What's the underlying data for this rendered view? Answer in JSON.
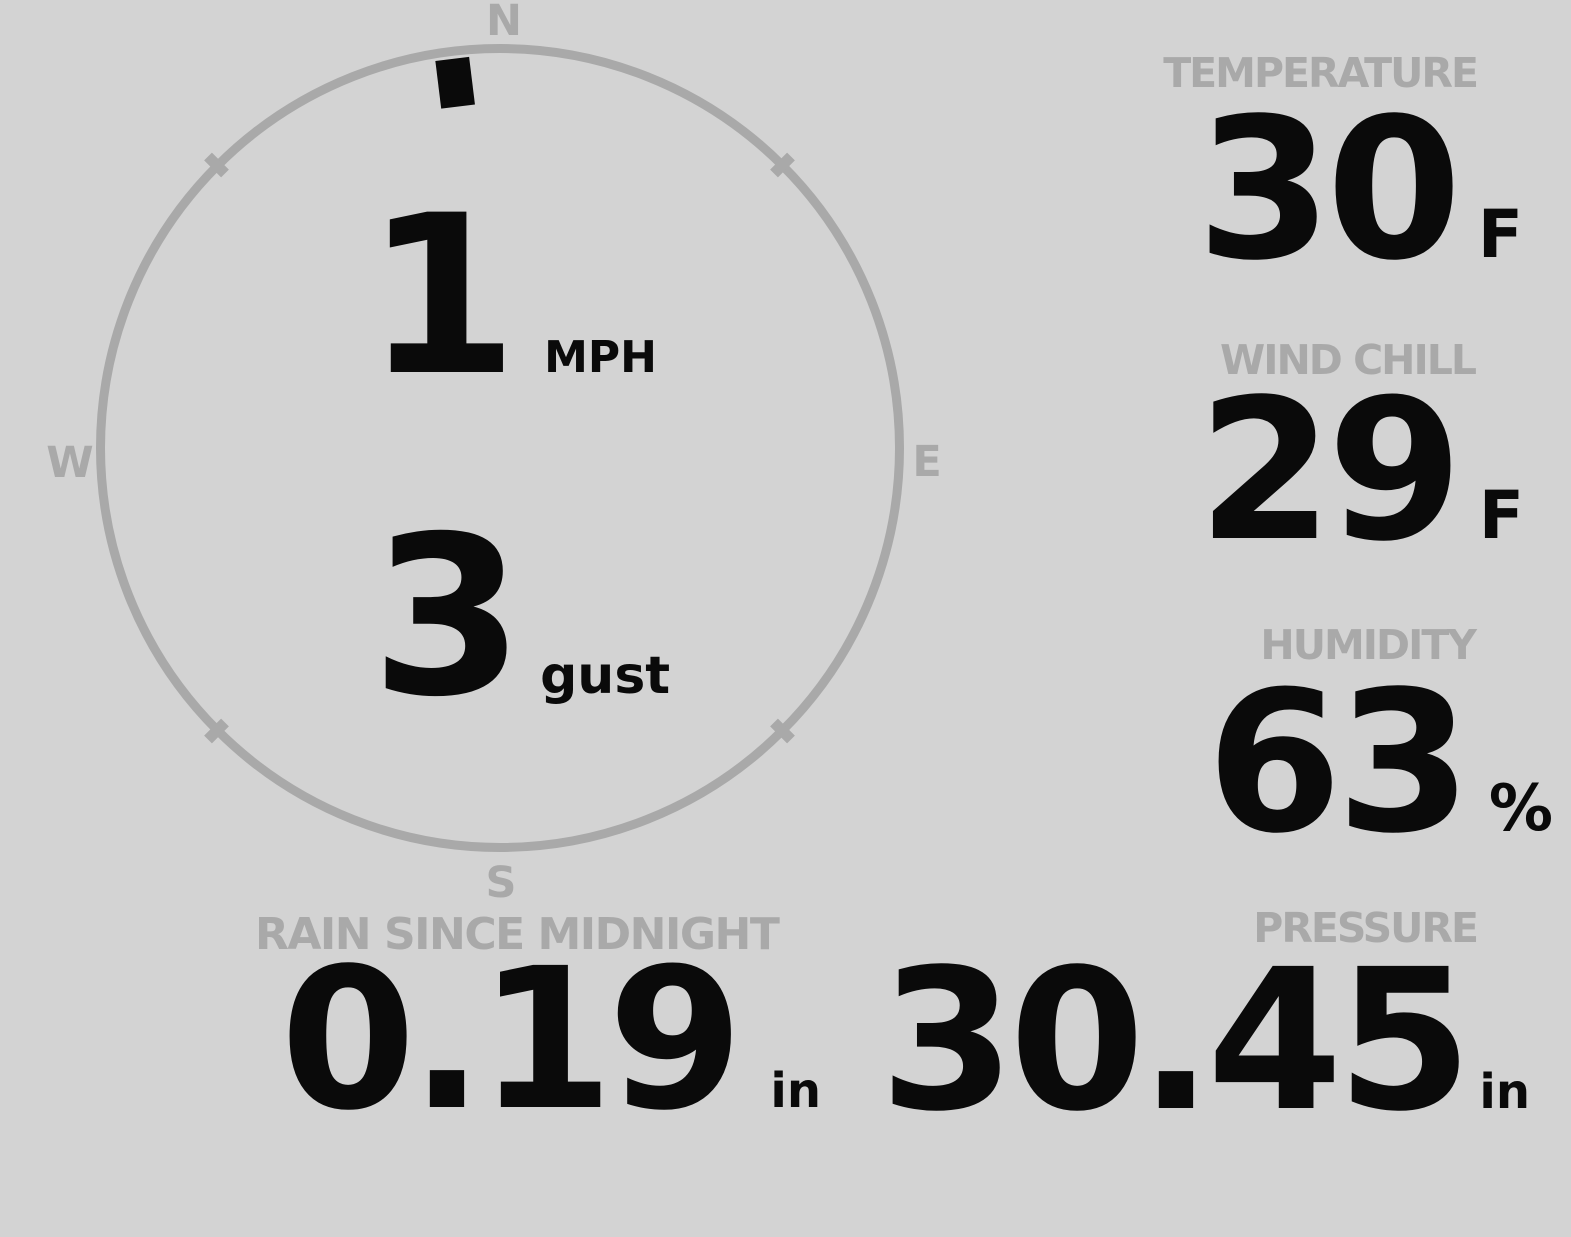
{
  "colors": {
    "background": "#d3d3d3",
    "muted": "#a9a9a9",
    "ink": "#0a0a0a"
  },
  "compass": {
    "cardinals": {
      "north": "N",
      "east": "E",
      "south": "S",
      "west": "W"
    },
    "wind_speed": {
      "value": "1",
      "unit": "MPH"
    },
    "wind_gust": {
      "value": "3",
      "unit": "gust"
    },
    "wind_direction_deg": 353
  },
  "metrics": {
    "temperature": {
      "label": "TEMPERATURE",
      "value": "30",
      "unit": "F"
    },
    "wind_chill": {
      "label": "WIND CHILL",
      "value": "29",
      "unit": "F"
    },
    "humidity": {
      "label": "HUMIDITY",
      "value": "63",
      "unit": "%"
    },
    "rain_since_midnight": {
      "label": "RAIN SINCE MIDNIGHT",
      "value": "0.19",
      "unit": "in"
    },
    "pressure": {
      "label": "PRESSURE",
      "value": "30.45",
      "unit": "in"
    }
  }
}
